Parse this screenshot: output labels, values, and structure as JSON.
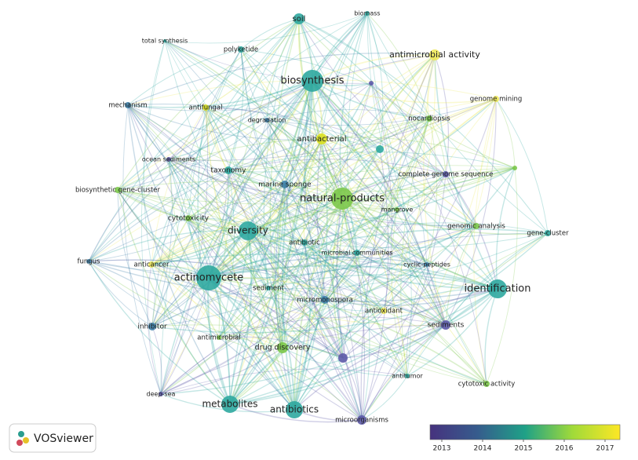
{
  "nodes": [
    {
      "label": "soil"
    },
    {
      "label": "biomass"
    },
    {
      "label": "total synthesis"
    },
    {
      "label": "polyketide"
    },
    {
      "label": "antimicrobial activity"
    },
    {
      "label": "biosynthesis"
    },
    {
      "label": "mechanism"
    },
    {
      "label": "antifungal"
    },
    {
      "label": "degradation"
    },
    {
      "label": "genome mining"
    },
    {
      "label": "nocardiopsis"
    },
    {
      "label": "antibacterial"
    },
    {
      "label": "ocean sediments"
    },
    {
      "label": "taxonomy"
    },
    {
      "label": "complete genome sequence"
    },
    {
      "label": "marine sponge"
    },
    {
      "label": "biosynthetic gene-cluster"
    },
    {
      "label": "natural-products"
    },
    {
      "label": "mangrove"
    },
    {
      "label": "cytotoxicity"
    },
    {
      "label": "diversity"
    },
    {
      "label": "genomic analysis"
    },
    {
      "label": "gene-cluster"
    },
    {
      "label": "antibiotic"
    },
    {
      "label": "microbial communities"
    },
    {
      "label": "fungus"
    },
    {
      "label": "anticancer"
    },
    {
      "label": "cyclic-peptides"
    },
    {
      "label": "actinomycete"
    },
    {
      "label": "identification"
    },
    {
      "label": "sediment"
    },
    {
      "label": "micromonospora"
    },
    {
      "label": "antioxidant"
    },
    {
      "label": "inhibitor"
    },
    {
      "label": "sediments"
    },
    {
      "label": "antimicrobial"
    },
    {
      "label": "drug discovery"
    },
    {
      "label": "antitumor"
    },
    {
      "label": "cytotoxic activity"
    },
    {
      "label": "deep-sea"
    },
    {
      "label": "metabolites"
    },
    {
      "label": "antibiotics"
    },
    {
      "label": "microorganisms"
    }
  ],
  "legend": {
    "ticks": [
      "2013",
      "2014",
      "2015",
      "2016",
      "2017"
    ]
  },
  "logo": "VOSviewer"
}
